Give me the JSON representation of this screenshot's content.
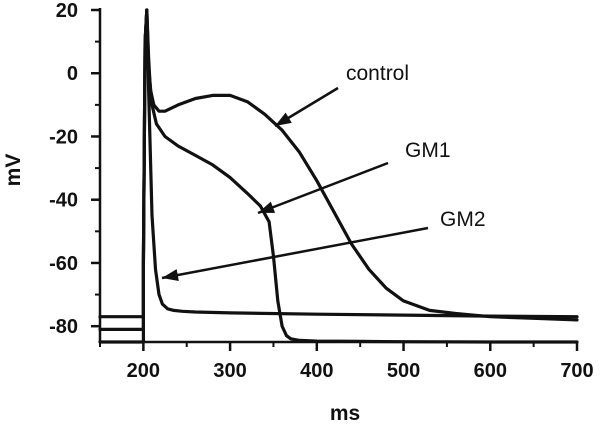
{
  "chart_data": {
    "type": "line",
    "title": "",
    "xlabel": "ms",
    "ylabel": "mV",
    "xlim": [
      150,
      700
    ],
    "ylim": [
      -85,
      20
    ],
    "xticks": [
      200,
      300,
      400,
      500,
      600,
      700
    ],
    "yticks": [
      20,
      0,
      -20,
      -40,
      -60,
      -80
    ],
    "xtick_labels": [
      "200",
      "300",
      "400",
      "500",
      "600",
      "700"
    ],
    "ytick_labels": [
      "20",
      "0",
      "-20",
      "-40",
      "-60",
      "-80"
    ],
    "grid": false,
    "legend": "none",
    "series": [
      {
        "name": "control",
        "x": [
          150,
          200,
          200,
          202,
          204,
          206,
          208,
          212,
          218,
          225,
          240,
          260,
          280,
          300,
          320,
          340,
          360,
          380,
          400,
          420,
          440,
          460,
          480,
          500,
          530,
          560,
          600,
          650,
          700
        ],
        "y": [
          -85,
          -85,
          -60,
          10,
          20,
          5,
          -5,
          -10,
          -12,
          -12,
          -10,
          -8,
          -7,
          -7,
          -9,
          -13,
          -18,
          -25,
          -34,
          -44,
          -54,
          -62,
          -68,
          -72,
          -75,
          -76,
          -77,
          -77.5,
          -78
        ]
      },
      {
        "name": "GM1",
        "x": [
          150,
          200,
          200,
          202,
          204,
          206,
          210,
          215,
          225,
          240,
          260,
          280,
          300,
          320,
          335,
          345,
          350,
          355,
          360,
          365,
          370,
          380,
          400,
          450,
          500,
          600,
          700
        ],
        "y": [
          -81,
          -81,
          -60,
          10,
          20,
          2,
          -10,
          -16,
          -20,
          -23,
          -26,
          -29,
          -33,
          -38,
          -42,
          -47,
          -58,
          -72,
          -80,
          -83,
          -84,
          -84.5,
          -84.7,
          -84.8,
          -84.9,
          -85,
          -85
        ]
      },
      {
        "name": "GM2",
        "x": [
          150,
          200,
          200,
          202,
          204,
          206,
          208,
          210,
          214,
          218,
          222,
          228,
          235,
          245,
          260,
          300,
          400,
          500,
          600,
          700
        ],
        "y": [
          -77,
          -77,
          -60,
          10,
          20,
          -5,
          -25,
          -45,
          -62,
          -70,
          -73,
          -74.5,
          -75,
          -75.3,
          -75.5,
          -75.8,
          -76.2,
          -76.5,
          -76.8,
          -77
        ]
      }
    ],
    "annotations": [
      {
        "text": "control",
        "label_x": 346,
        "label_y": 80,
        "tail": [
          338,
          88
        ],
        "head": [
          275,
          126
        ]
      },
      {
        "text": "GM1",
        "label_x": 405,
        "label_y": 157,
        "tail": [
          388,
          163
        ],
        "head": [
          258,
          213
        ]
      },
      {
        "text": "GM2",
        "label_x": 440,
        "label_y": 226,
        "tail": [
          428,
          228
        ],
        "head": [
          162,
          278
        ]
      }
    ]
  },
  "colors": {
    "line": "#111111",
    "background": "#ffffff"
  }
}
